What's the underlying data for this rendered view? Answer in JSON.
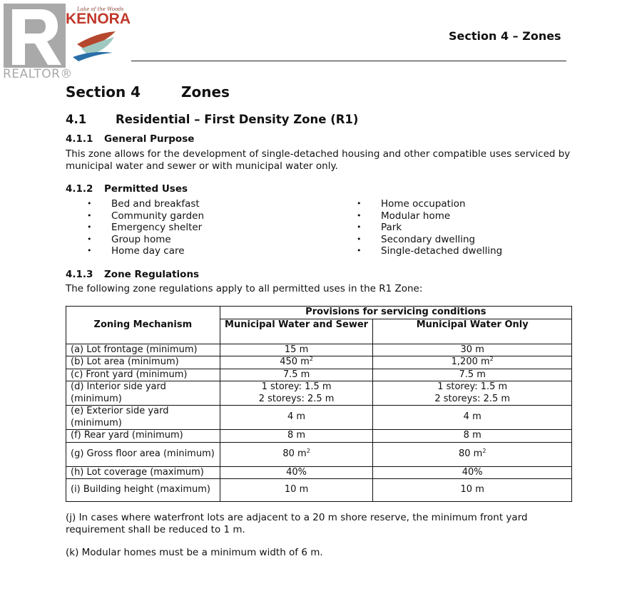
{
  "logos": {
    "realtor": "REALTOR®",
    "kenora": "KENORA",
    "kenora_tagline": "Lake of the Woods",
    "colors": {
      "realtor": "#a9a9a9",
      "kenora": "#c0392b"
    }
  },
  "header": {
    "title": "Section 4 – Zones"
  },
  "section": {
    "number": "Section 4",
    "title": "Zones"
  },
  "subsection": {
    "number": "4.1",
    "title": "Residential – First Density Zone (R1)"
  },
  "general_purpose": {
    "heading_num": "4.1.1",
    "heading": "General Purpose",
    "text": "This zone allows for the development of single-detached housing and other compatible uses serviced by municipal water and sewer or with municipal water only."
  },
  "permitted_uses": {
    "heading_num": "4.1.2",
    "heading": "Permitted Uses",
    "left": [
      "Bed and breakfast",
      "Community garden",
      "Emergency shelter",
      "Group home",
      "Home day care"
    ],
    "right": [
      "Home occupation",
      "Modular home",
      "Park",
      "Secondary dwelling",
      "Single-detached dwelling"
    ]
  },
  "zone_regs": {
    "heading_num": "4.1.3",
    "heading": "Zone Regulations",
    "intro": "The following zone regulations apply to all permitted uses in the R1 Zone:"
  },
  "table": {
    "col0": "Zoning Mechanism",
    "group": "Provisions for servicing conditions",
    "col1": "Municipal Water and Sewer",
    "col2": "Municipal Water Only",
    "rows": [
      {
        "m": "(a) Lot frontage (minimum)",
        "a": "15 m",
        "b": "30 m"
      },
      {
        "m": "(b) Lot area (minimum)",
        "a": "450 m",
        "a_sup": "2",
        "b": "1,200 m",
        "b_sup": "2"
      },
      {
        "m": "(c) Front yard (minimum)",
        "a": "7.5 m",
        "b": "7.5 m"
      },
      {
        "m": "(d) Interior side yard (minimum)",
        "a": "1 storey: 1.5 m",
        "a2": "2 storeys: 2.5 m",
        "b": "1 storey: 1.5 m",
        "b2": "2 storeys: 2.5 m"
      },
      {
        "m": "(e) Exterior side yard (minimum)",
        "a": "4 m",
        "b": "4 m"
      },
      {
        "m": "(f) Rear yard (minimum)",
        "a": "8 m",
        "b": "8 m"
      },
      {
        "m": "(g) Gross floor area (minimum)",
        "a": "80 m",
        "a_sup": "2",
        "b": "80 m",
        "b_sup": "2"
      },
      {
        "m": "(h) Lot coverage (maximum)",
        "a": "40%",
        "b": "40%"
      },
      {
        "m": "(i) Building height (maximum)",
        "a": "10 m",
        "b": "10 m"
      }
    ]
  },
  "notes": {
    "j": "(j) In cases where waterfront lots are adjacent to a 20 m shore reserve, the minimum front yard requirement shall be reduced to 1 m.",
    "k": "(k) Modular homes must be a minimum width of 6 m."
  }
}
